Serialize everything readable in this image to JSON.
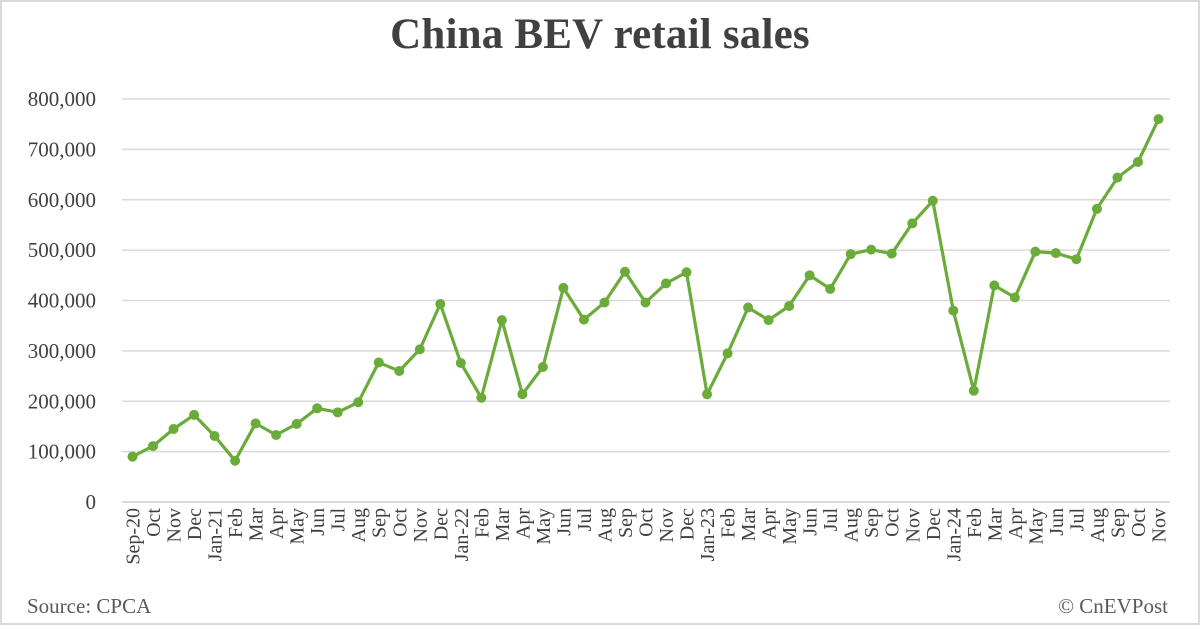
{
  "title": "China BEV retail sales",
  "footer": {
    "source": "Source: CPCA",
    "credit": "© CnEVPost"
  },
  "colors": {
    "line": "#6aab3a",
    "grid": "#d9d9d9",
    "text": "#404040"
  },
  "chart_data": {
    "type": "line",
    "title": "China BEV retail sales",
    "xlabel": "",
    "ylabel": "",
    "ylim": [
      0,
      800000
    ],
    "yticks": [
      0,
      100000,
      200000,
      300000,
      400000,
      500000,
      600000,
      700000,
      800000
    ],
    "ytick_labels": [
      "0",
      "100,000",
      "200,000",
      "300,000",
      "400,000",
      "500,000",
      "600,000",
      "700,000",
      "800,000"
    ],
    "grid": true,
    "legend": "none",
    "categories": [
      "Sep-20",
      "Oct",
      "Nov",
      "Dec",
      "Jan-21",
      "Feb",
      "Mar",
      "Apr",
      "May",
      "Jun",
      "Jul",
      "Aug",
      "Sep",
      "Oct",
      "Nov",
      "Dec",
      "Jan-22",
      "Feb",
      "Mar",
      "Apr",
      "May",
      "Jun",
      "Jul",
      "Aug",
      "Sep",
      "Oct",
      "Nov",
      "Dec",
      "Jan-23",
      "Feb",
      "Mar",
      "Apr",
      "May",
      "Jun",
      "Jul",
      "Aug",
      "Sep",
      "Oct",
      "Nov",
      "Dec",
      "Jan-24",
      "Feb",
      "Mar",
      "Apr",
      "May",
      "Jun",
      "Jul",
      "Aug",
      "Sep",
      "Oct",
      "Nov"
    ],
    "series": [
      {
        "name": "China BEV retail sales",
        "values": [
          90000,
          111000,
          145000,
          173000,
          131000,
          82000,
          156000,
          133000,
          155000,
          186000,
          178000,
          198000,
          277000,
          260000,
          303000,
          393000,
          276000,
          207000,
          361000,
          214000,
          268000,
          425000,
          362000,
          396000,
          457000,
          396000,
          434000,
          456000,
          214000,
          295000,
          386000,
          361000,
          389000,
          450000,
          423000,
          492000,
          501000,
          493000,
          553000,
          598000,
          380000,
          221000,
          430000,
          406000,
          497000,
          494000,
          482000,
          582000,
          644000,
          675000,
          760000
        ]
      }
    ]
  }
}
